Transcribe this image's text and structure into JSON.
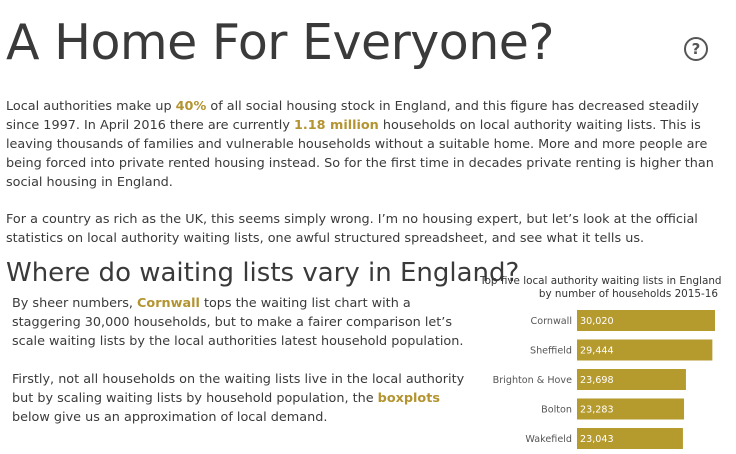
{
  "header": {
    "title": "A Home For Everyone?",
    "help_icon": "question-mark-circle-icon"
  },
  "intro": {
    "p1_a": "Local authorities make up ",
    "p1_h1": "40%",
    "p1_b": " of all social housing stock in England, and this figure has decreased steadily since 1997. In April 2016 there are currently ",
    "p1_h2": "1.18 million",
    "p1_c": " households on local authority waiting lists. This is leaving thousands of families and vulnerable households without a suitable home. More and more people are being forced into private rented housing instead. So for the first time in decades private renting is higher than social housing in England.",
    "p2": "For a country as rich as the UK, this seems simply wrong. I’m no housing expert, but let’s look at the official statistics on local authority waiting lists, one awful structured spreadsheet, and see what it tells us."
  },
  "section": {
    "heading": "Where do waiting lists vary in England?",
    "b1_a": "By sheer numbers, ",
    "b1_h": "Cornwall",
    "b1_b": " tops the waiting list chart with a staggering 30,000 households, but to make a fairer comparison let’s scale waiting lists by the local authorities latest household population.",
    "b2_a": "Firstly, not all households on the waiting lists live in the local authority but by scaling waiting lists by household population, the ",
    "b2_h": "boxplots",
    "b2_b": " below give us an approximation of local demand."
  },
  "colors": {
    "accent": "#b39430",
    "bar": "#b59a2e",
    "text": "#3a3a3a"
  },
  "chart_data": {
    "type": "bar",
    "orientation": "horizontal",
    "title_line1": "Top five local authority waiting lists in England",
    "title_line2": "by number of households 2015-16",
    "categories": [
      "Cornwall",
      "Sheffield",
      "Brighton & Hove",
      "Bolton",
      "Wakefield"
    ],
    "values": [
      30020,
      29444,
      23698,
      23283,
      23043
    ],
    "value_labels": [
      "30,020",
      "29,444",
      "23,698",
      "23,283",
      "23,043"
    ],
    "xlim": [
      0,
      30020
    ],
    "grid": false,
    "legend": "none"
  }
}
